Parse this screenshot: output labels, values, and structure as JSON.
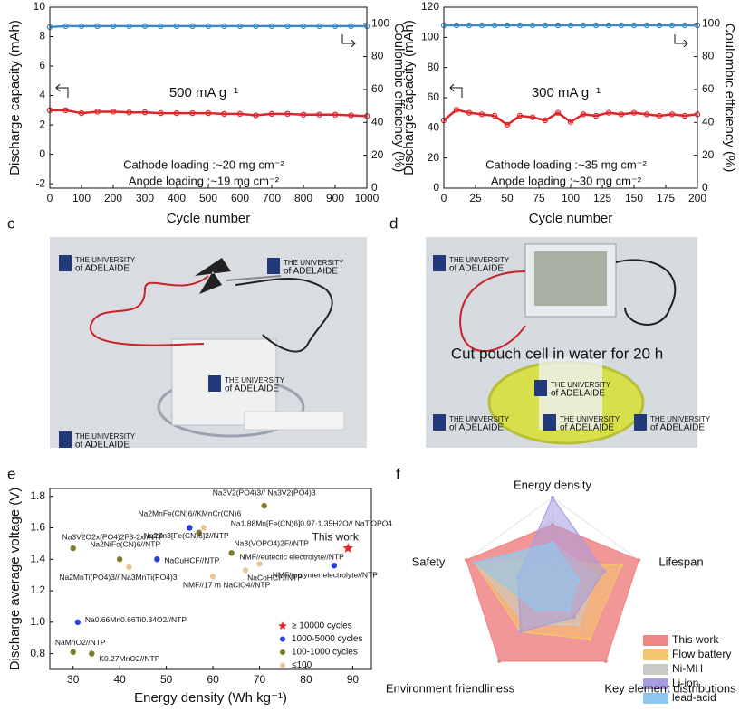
{
  "chart_data": [
    {
      "type": "line",
      "x_label": "Cycle number",
      "y_label": "Discharge capacity (mAh)",
      "y2_label": "Coulombic efficiency (%)",
      "annotations": [
        "500 mA g⁻¹",
        "Cathode loading :~20 mg cm⁻²",
        "Anode loading :~19 mg cm⁻²"
      ],
      "x": [
        0,
        50,
        100,
        150,
        200,
        250,
        300,
        350,
        400,
        450,
        500,
        550,
        600,
        650,
        700,
        750,
        800,
        850,
        900,
        950,
        1000
      ],
      "series": [
        {
          "color": "#e0252a",
          "values": [
            3.0,
            3.0,
            2.8,
            2.9,
            2.9,
            2.85,
            2.85,
            2.8,
            2.8,
            2.8,
            2.8,
            2.75,
            2.75,
            2.65,
            2.75,
            2.75,
            2.7,
            2.7,
            2.7,
            2.65,
            2.6
          ]
        },
        {
          "color": "#3b8bc4",
          "axis": "y2",
          "values": [
            98,
            98.5,
            98.5,
            98.5,
            98.5,
            98.5,
            98.5,
            98.5,
            98.5,
            98.5,
            98.5,
            98.5,
            98.5,
            98.5,
            98.5,
            98.5,
            98.5,
            98.5,
            98.5,
            98.5,
            98.5
          ]
        }
      ],
      "xlim": [
        0,
        1000
      ],
      "xticks": [
        0,
        100,
        200,
        300,
        400,
        500,
        600,
        700,
        800,
        900,
        1000
      ],
      "ylim": [
        -2.3,
        10
      ],
      "yticks": [
        -2,
        0,
        2,
        4,
        6,
        8,
        10
      ],
      "y2lim": [
        0,
        110
      ],
      "y2ticks": [
        0,
        20,
        40,
        60,
        80,
        100
      ]
    },
    {
      "type": "line",
      "x_label": "Cycle number",
      "y_label": "Discharge capacity (mAh)",
      "y2_label": "Coulombic efficiency (%)",
      "annotations": [
        "300 mA g⁻¹",
        "Cathode loading :~35 mg cm⁻²",
        "Anode loading :~30 mg cm⁻²"
      ],
      "x": [
        0,
        10,
        20,
        30,
        40,
        50,
        60,
        70,
        80,
        90,
        100,
        110,
        120,
        130,
        140,
        150,
        160,
        170,
        180,
        190,
        200
      ],
      "series": [
        {
          "color": "#e0252a",
          "values": [
            45,
            52,
            50,
            49,
            48,
            42,
            48,
            47,
            45,
            50,
            44,
            49,
            48,
            50,
            49,
            50,
            49,
            48,
            49,
            48,
            49
          ]
        },
        {
          "color": "#3b8bc4",
          "axis": "y2",
          "values": [
            99,
            99,
            99,
            99,
            99,
            99,
            99,
            99,
            99,
            99,
            99,
            99,
            99,
            99,
            99,
            99,
            99,
            99,
            99,
            99,
            99
          ]
        }
      ],
      "xlim": [
        0,
        200
      ],
      "xticks": [
        0,
        25,
        50,
        75,
        100,
        125,
        150,
        175,
        200
      ],
      "ylim": [
        0,
        120
      ],
      "yticks": [
        0,
        20,
        40,
        60,
        80,
        100,
        120
      ],
      "y2lim": [
        0,
        110
      ],
      "y2ticks": [
        0,
        20,
        40,
        60,
        80,
        100
      ]
    },
    {
      "type": "scatter",
      "panel": "e",
      "x_label": "Energy density (Wh kg⁻¹)",
      "y_label": "Discharge average voltage (V)",
      "xlim": [
        25,
        94
      ],
      "xticks": [
        30,
        40,
        50,
        60,
        70,
        80,
        90
      ],
      "ylim": [
        0.7,
        1.85
      ],
      "yticks": [
        0.8,
        {
          "value": 1,
          "label": "1.0"
        },
        1.2,
        1.4,
        1.6,
        1.8
      ],
      "legend": "lower right",
      "series": [
        {
          "name": "≥ 10000 cycles",
          "color": "#e8262b",
          "marker": "star",
          "x": [
            89
          ],
          "values": [
            1.47
          ],
          "point_labels": [
            "This work"
          ]
        },
        {
          "name": "1000-5000 cycles",
          "color": "#2b3fd6",
          "marker": "circle",
          "x": [
            55,
            48,
            86,
            31
          ],
          "values": [
            1.6,
            1.4,
            1.36,
            1.0
          ],
          "point_labels": [
            "Na2MnFe(CN)6//KMnCr(CN)6",
            "NaCuHCF//NTP",
            "NMF//polymer electrolyte//NTP",
            "Na0.66Mn0.66Ti0.34O2//NTP"
          ]
        },
        {
          "name": "100-1000 cycles",
          "color": "#7d7a2a",
          "marker": "circle",
          "x": [
            71,
            57,
            30,
            40,
            64,
            30,
            34
          ],
          "values": [
            1.74,
            1.57,
            1.47,
            1.4,
            1.44,
            0.81,
            0.8
          ],
          "point_labels": [
            "Na3V2(PO4)3// Na3V2(PO4)3",
            "Na2Zn3[Fe(CN)6]2//NTP",
            "Na3V2O2x(PO4)2F3-2x//NTP",
            "Na2NiFe(CN)6//NTP",
            "Na3(VOPO4)2F//NTP",
            "NaMnO2//NTP",
            "K0.27MnO2//NTP"
          ]
        },
        {
          "name": "≤100",
          "color": "#e9c79a",
          "marker": "circle",
          "x": [
            58,
            70,
            67,
            60,
            42
          ],
          "values": [
            1.6,
            1.37,
            1.33,
            1.29,
            1.35
          ],
          "point_labels": [
            "Na1.88Mn[Fe(CN)6]0.97·1.35H2O// NaTiOPO4",
            "NMF//eutectic electrolyte//NTP",
            "NaCoHCF//NTP",
            "NMF//17 m NaClO4//NTP",
            "Na2MnTi(PO4)3// Na3MnTi(PO4)3"
          ]
        }
      ]
    },
    {
      "type": "radar",
      "panel": "f",
      "categories": [
        "Energy density",
        "Lifespan",
        "Key element distributions",
        "Environment friendliness",
        "Safety"
      ],
      "rlim": [
        0,
        1
      ],
      "legend": "lower right",
      "series": [
        {
          "name": "This work",
          "color": "#f08585",
          "values": [
            0.7,
            1.0,
            1.0,
            1.0,
            1.0
          ]
        },
        {
          "name": "Flow battery",
          "color": "#f3c66c",
          "values": [
            0.3,
            0.8,
            0.7,
            0.6,
            0.9
          ]
        },
        {
          "name": "Ni-MH",
          "color": "#c9c9c9",
          "values": [
            0.5,
            0.5,
            0.5,
            0.5,
            0.9
          ]
        },
        {
          "name": "Li-ion",
          "color": "#a69de0",
          "values": [
            1.0,
            0.6,
            0.4,
            0.6,
            0.4
          ]
        },
        {
          "name": "lead-acid",
          "color": "#8cc8f0",
          "values": [
            0.5,
            0.3,
            0.3,
            0.3,
            0.9
          ]
        }
      ]
    }
  ],
  "photos": [
    {
      "panel": "c",
      "logo_top": "THE UNIVERSITY",
      "logo_bottom": "of ADELAIDE"
    },
    {
      "panel": "d",
      "logo_top": "THE UNIVERSITY",
      "logo_bottom": "of ADELAIDE",
      "caption": "Cut pouch cell in water for 20 h"
    }
  ]
}
